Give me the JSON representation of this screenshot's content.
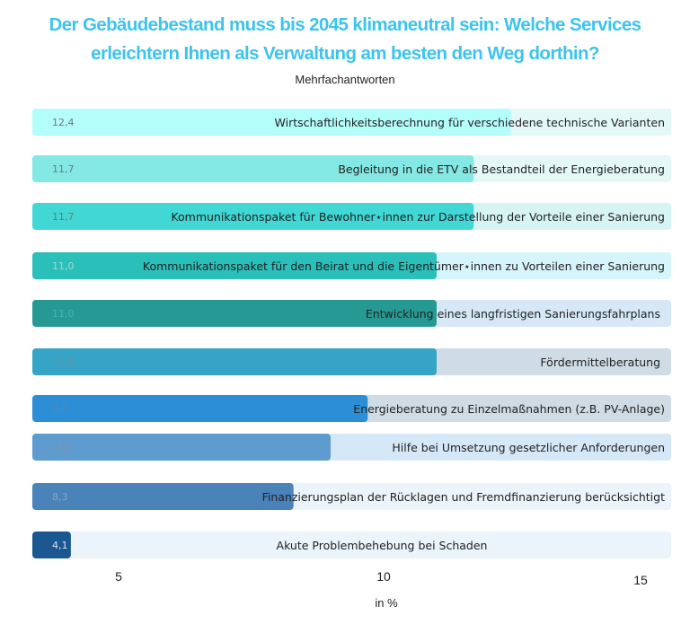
{
  "chart_data": {
    "type": "bar",
    "orientation": "horizontal",
    "title": "Der Gebäudebestand muss bis 2045 klimaneutral sein: Welche Services erleichtern Ihnen als Verwaltung am besten den Weg dorthin?",
    "title_line1": "Der Gebäudebestand muss bis 2045 klimaneutral sein: Welche Services",
    "title_line2": "erleichtern Ihnen als Verwaltung am besten den Weg dorthin?",
    "subtitle": "Mehrfachantworten",
    "xlabel": "in %",
    "ylabel": "",
    "xticks": [
      5,
      10,
      15
    ],
    "xlim": [
      3.4,
      15.5
    ],
    "grid": false,
    "categories": [
      "Wirtschaftlichkeitsberechnung für verschiedene technische Varianten",
      "Begleitung in die ETV als Bestandteil der Energieberatung",
      "Kommunikationspaket für Bewohner⋆innen zur Darstellung der Vorteile einer Sanierung",
      "Kommunikationspaket für den Beirat und die Eigentümer⋆innen zu Vorteilen einer Sanierung",
      "Entwicklung eines langfristigen Sanierungsfahrplans",
      "Fördermittelberatung",
      "Energieberatung zu Einzelmaßnahmen (z.B. PV-Anlage)",
      "Hilfe bei Umsetzung gesetzlicher Anforderungen",
      "Finanzierungsplan der Rücklagen und Fremdfinanzierung berücksichtigt",
      "Akute Problembehebung bei Schaden"
    ],
    "values": [
      12.4,
      11.7,
      11.7,
      11.0,
      11.0,
      11.0,
      9.7,
      9.0,
      8.3,
      4.1
    ],
    "value_labels": [
      "12,4",
      "11,7",
      "11,7",
      "11,0",
      "11,0",
      "11,0",
      "9,7",
      "9,0",
      "8,3",
      "4,1"
    ],
    "bar_colors": [
      "#b3fdfb",
      "#84e8e4",
      "#40d7d4",
      "#2bbfb9",
      "#269a92",
      "#36a4c6",
      "#2c8fd6",
      "#5e9ccf",
      "#4a83ba",
      "#1b5891"
    ],
    "track_colors": [
      "#e5f8f8",
      "#e5f8f8",
      "#d7f4f4",
      "#d6f4fb",
      "#d6e8f6",
      "#cfdce6",
      "#cfdce6",
      "#d5e8f7",
      "#ebf3fb",
      "#ebf3fb"
    ],
    "value_label_colors": [
      "#6b7b7b",
      "#6b7b7b",
      "#6b7b7b",
      "#a3d8d5",
      "#4ab3aa",
      "#6a8fa0",
      "#5a86a8",
      "#7f8fa6",
      "#8fa5be",
      "#d6e2ef"
    ]
  }
}
